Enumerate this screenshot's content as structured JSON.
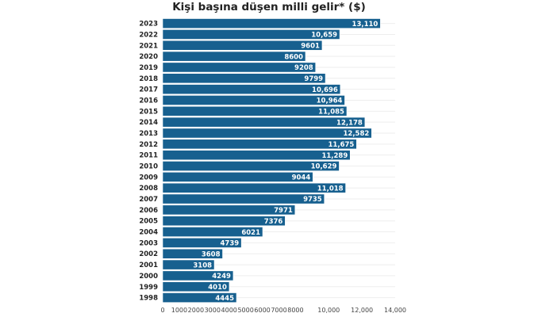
{
  "chart_data": {
    "type": "bar",
    "orientation": "horizontal",
    "title": "Kişi başına düşen milli gelir* ($)",
    "xlabel": "",
    "ylabel": "",
    "categories": [
      "2023",
      "2022",
      "2021",
      "2020",
      "2019",
      "2018",
      "2017",
      "2016",
      "2015",
      "2014",
      "2013",
      "2012",
      "2011",
      "2010",
      "2009",
      "2008",
      "2007",
      "2006",
      "2005",
      "2004",
      "2003",
      "2002",
      "2001",
      "2000",
      "1999",
      "1998"
    ],
    "values": [
      13110,
      10659,
      9601,
      8600,
      9208,
      9799,
      10696,
      10964,
      11085,
      12178,
      12582,
      11675,
      11289,
      10629,
      9044,
      11018,
      9735,
      7971,
      7376,
      6021,
      4739,
      3608,
      3108,
      4249,
      4010,
      4445
    ],
    "value_labels": [
      "13,110",
      "10,659",
      "9601",
      "8600",
      "9208",
      "9799",
      "10,696",
      "10,964",
      "11,085",
      "12,178",
      "12,582",
      "11,675",
      "11,289",
      "10,629",
      "9044",
      "11,018",
      "9735",
      "7971",
      "7376",
      "6021",
      "4739",
      "3608",
      "3108",
      "4249",
      "4010",
      "4445"
    ],
    "xlim": [
      0,
      14000
    ],
    "xticks": [
      0,
      1000,
      2000,
      3000,
      4000,
      5000,
      6000,
      7000,
      8000,
      10000,
      12000,
      14000
    ],
    "xtick_labels": [
      "0",
      "1000",
      "2000",
      "3000",
      "4000",
      "5000",
      "6000",
      "7000",
      "8000",
      "10,000",
      "12,000",
      "14,000"
    ],
    "grid": true,
    "bar_color": "#17608f"
  }
}
